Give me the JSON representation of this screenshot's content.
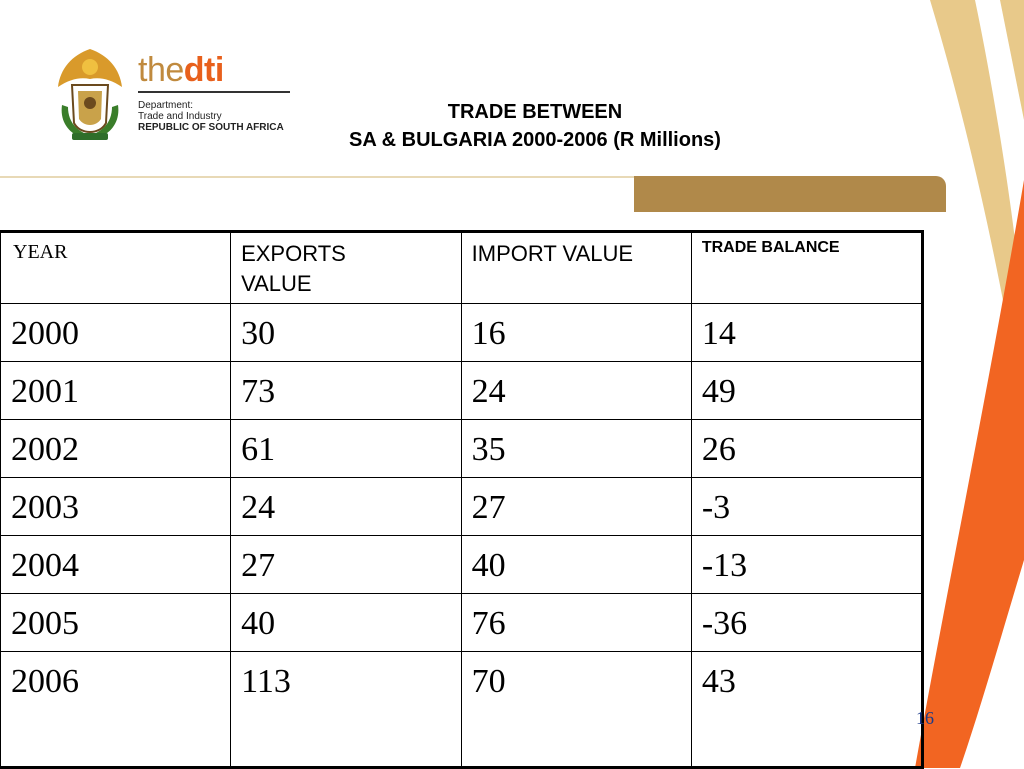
{
  "logo": {
    "brand_the": "the",
    "brand_dti": "dti",
    "dept_line1": "Department:",
    "dept_line2": "Trade and Industry",
    "dept_line3": "REPUBLIC OF SOUTH AFRICA",
    "crest_icon": "south-africa-coat-of-arms"
  },
  "title": {
    "line1": "TRADE BETWEEN",
    "line2": "SA & BULGARIA 2000-2006 (R Millions)"
  },
  "table": {
    "headers": [
      "YEAR",
      "EXPORTS VALUE",
      "IMPORT VALUE",
      "TRADE BALANCE"
    ],
    "rows": [
      [
        "2000",
        "30",
        "16",
        "14"
      ],
      [
        "2001",
        "73",
        "24",
        "49"
      ],
      [
        "2002",
        "61",
        "35",
        "26"
      ],
      [
        "2003",
        "24",
        "27",
        "-3"
      ],
      [
        "2004",
        "27",
        "40",
        "-13"
      ],
      [
        "2005",
        "40",
        "76",
        "-36"
      ],
      [
        "2006",
        "113",
        "70",
        "43"
      ]
    ]
  },
  "page_number": "16",
  "colors": {
    "orange": "#f26522",
    "gold": "#b0894a",
    "light_gold": "#e8c98a",
    "page_number": "#1a3a8a"
  }
}
